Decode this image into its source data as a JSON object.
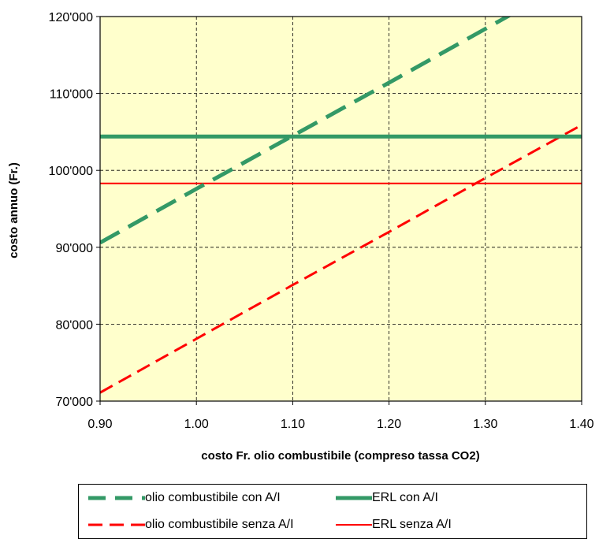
{
  "chart_data": {
    "type": "line",
    "title": "",
    "xlabel": "costo Fr. olio combustibile (compreso tassa CO2)",
    "ylabel": "costo annuo (Fr.)",
    "xlim": [
      0.9,
      1.4
    ],
    "ylim": [
      70000,
      120000
    ],
    "xticks": [
      0.9,
      1.0,
      1.1,
      1.2,
      1.3,
      1.4
    ],
    "xtick_labels": [
      "0.90",
      "1.00",
      "1.10",
      "1.20",
      "1.30",
      "1.40"
    ],
    "yticks": [
      70000,
      80000,
      90000,
      100000,
      110000,
      120000
    ],
    "ytick_labels": [
      "70'000",
      "80'000",
      "90'000",
      "100'000",
      "110'000",
      "120'000"
    ],
    "grid": true,
    "plot_background": "#ffffcc",
    "legend_position": "bottom",
    "series": [
      {
        "name": "olio combustibile con A/I",
        "color": "#339966",
        "style": "dashed-thick",
        "x": [
          0.9,
          1.0,
          1.1,
          1.2,
          1.3,
          1.33
        ],
        "y": [
          90600,
          97600,
          104500,
          111400,
          118400,
          120500
        ]
      },
      {
        "name": "ERL con A/I",
        "color": "#339966",
        "style": "solid-thick",
        "x": [
          0.9,
          1.4
        ],
        "y": [
          104400,
          104400
        ]
      },
      {
        "name": "olio combustibile senza A/I",
        "color": "#ff0000",
        "style": "dashed",
        "x": [
          0.9,
          1.0,
          1.1,
          1.2,
          1.3,
          1.4
        ],
        "y": [
          71100,
          78100,
          85100,
          92000,
          99000,
          105900
        ]
      },
      {
        "name": "ERL senza A/I",
        "color": "#ff0000",
        "style": "solid",
        "x": [
          0.9,
          1.4
        ],
        "y": [
          98300,
          98300
        ]
      }
    ]
  }
}
